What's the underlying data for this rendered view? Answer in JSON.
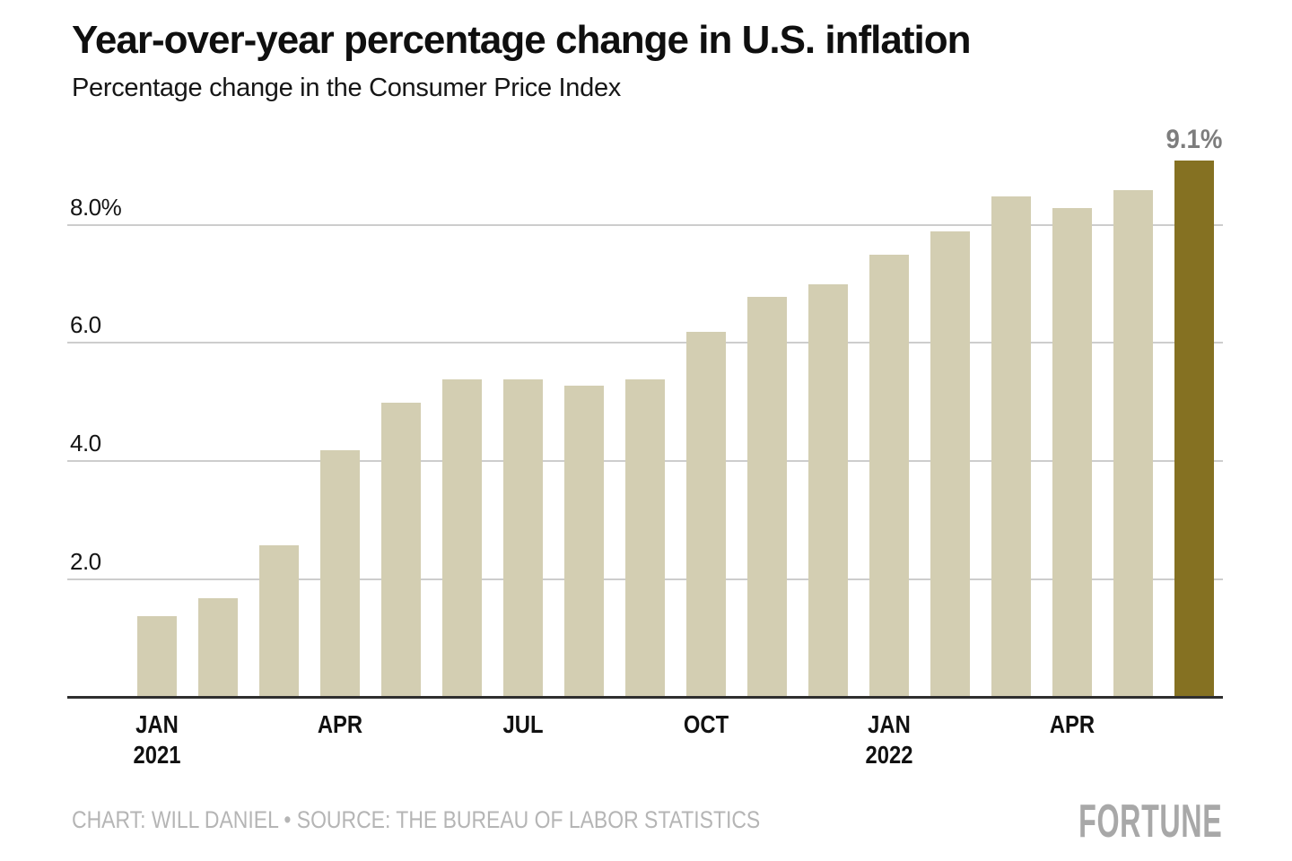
{
  "header": {
    "title": "Year-over-year percentage change in U.S. inflation",
    "subtitle": "Percentage change in the Consumer Price Index"
  },
  "footer": {
    "credits": "CHART: WILL DANIEL • SOURCE: THE BUREAU OF LABOR STATISTICS",
    "logo": "FORTUNE"
  },
  "chart_data": {
    "type": "bar",
    "title": "Year-over-year percentage change in U.S. inflation",
    "subtitle": "Percentage change in the Consumer Price Index",
    "categories": [
      "Jan 2021",
      "Feb 2021",
      "Mar 2021",
      "Apr 2021",
      "May 2021",
      "Jun 2021",
      "Jul 2021",
      "Aug 2021",
      "Sep 2021",
      "Oct 2021",
      "Nov 2021",
      "Dec 2021",
      "Jan 2022",
      "Feb 2022",
      "Mar 2022",
      "Apr 2022",
      "May 2022",
      "Jun 2022"
    ],
    "values": [
      1.4,
      1.7,
      2.6,
      4.2,
      5.0,
      5.4,
      5.4,
      5.3,
      5.4,
      6.2,
      6.8,
      7.0,
      7.5,
      7.9,
      8.5,
      8.3,
      8.6,
      9.1
    ],
    "unit": "percent",
    "ylim": [
      0,
      9.6
    ],
    "grid": true,
    "legend": false,
    "highlight_index": 17,
    "annotation": {
      "index": 17,
      "label": "9.1%"
    },
    "y_ticks": [
      {
        "value": 2,
        "label": "2.0"
      },
      {
        "value": 4,
        "label": "4.0"
      },
      {
        "value": 6,
        "label": "6.0"
      },
      {
        "value": 8,
        "label": "8.0%"
      }
    ],
    "x_ticks": [
      {
        "index": 0,
        "line1": "JAN",
        "line2": "2021"
      },
      {
        "index": 3,
        "line1": "APR",
        "line2": ""
      },
      {
        "index": 6,
        "line1": "JUL",
        "line2": ""
      },
      {
        "index": 9,
        "line1": "OCT",
        "line2": ""
      },
      {
        "index": 12,
        "line1": "JAN",
        "line2": "2022"
      },
      {
        "index": 15,
        "line1": "APR",
        "line2": ""
      }
    ],
    "colors": {
      "bar": "#d3ceb2",
      "highlight": "#857122",
      "gridline": "#cdcdcd",
      "axis_line": "#2f2f2f",
      "annotation_text": "#7d7d7d",
      "credits_text": "#b5b5b5",
      "logo_text": "#a8a8a8"
    }
  }
}
